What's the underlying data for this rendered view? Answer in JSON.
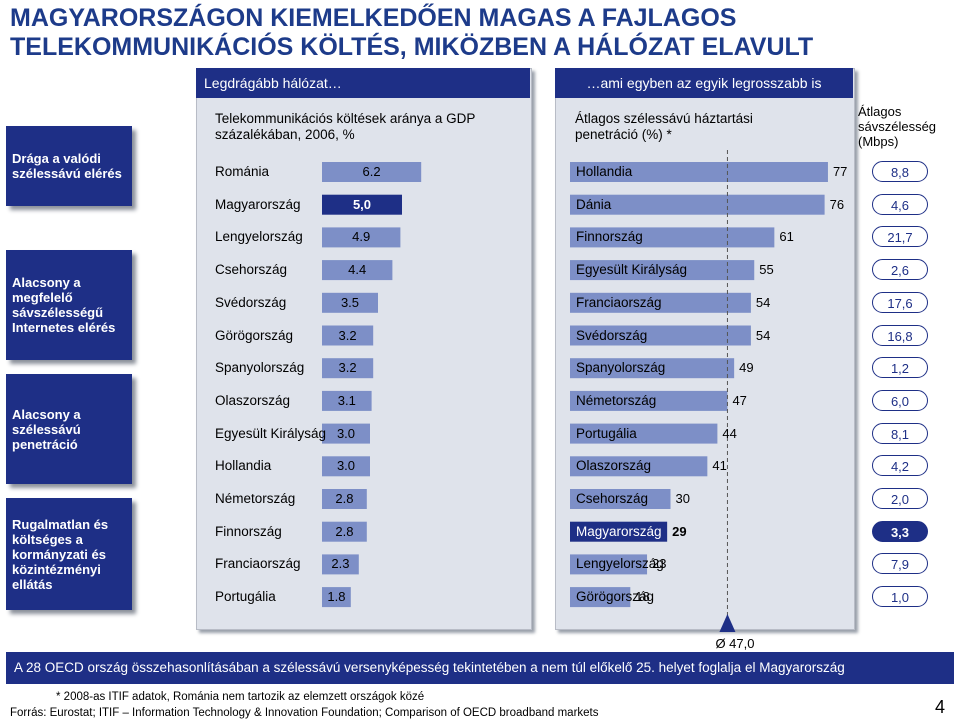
{
  "title_line1": "MAGYARORSZÁGON KIEMELKEDŐEN MAGAS A FAJLAGOS",
  "title_line2": "TELEKOMMUNIKÁCIÓS KÖLTÉS, MIKÖZBEN A HÁLÓZAT ELAVULT",
  "panel_left_header": "Legdrágább hálózat…",
  "panel_right_header": "…ami egyben az egyik legrosszabb is",
  "left_boxes": [
    "Drága a valódi szélessávú elérés",
    "Alacsony a megfelelő sávszélességű Internetes elérés",
    "Alacsony a szélessávú penetráció",
    "Rugalmatlan és költséges a kormányzati és közintézményi ellátás"
  ],
  "bottom_bar": "A 28 OECD ország összehasonlításában a szélessávú versenyképesség tekintetében a nem túl előkelő 25. helyet foglalja el Magyarország",
  "footnote": "* 2008-as ITIF adatok, Románia nem tartozik az elemzett országok közé",
  "source": "Forrás: Eurostat; ITIF – Information Technology & Innovation Foundation; Comparison of OECD broadband markets",
  "page_number": "4",
  "colors": {
    "navy": "#1e2f86",
    "bar": "#7d8fc7",
    "panel": "#dfe3eb",
    "marker": "#1e2f86"
  },
  "chart_data": [
    {
      "type": "bar",
      "title": "Telekommunikációs költések aránya a GDP százalékában, 2006, %",
      "categories": [
        "Románia",
        "Magyarország",
        "Lengyelország",
        "Csehország",
        "Svédország",
        "Görögország",
        "Spanyolország",
        "Olaszország",
        "Egyesült Királyság",
        "Hollandia",
        "Németország",
        "Finnország",
        "Franciaország",
        "Portugália"
      ],
      "values": [
        6.2,
        5.0,
        4.9,
        4.4,
        3.5,
        3.2,
        3.2,
        3.1,
        3.0,
        3.0,
        2.8,
        2.8,
        2.3,
        1.8
      ],
      "value_labels": [
        "6.2",
        "5,0",
        "4.9",
        "4.4",
        "3.5",
        "3.2",
        "3.2",
        "3.1",
        "3.0",
        "3.0",
        "2.8",
        "2.8",
        "2.3",
        "1.8"
      ],
      "highlight": "Magyarország"
    },
    {
      "type": "bar",
      "title": "Átlagos szélessávú háztartási penetráció (%) *",
      "categories": [
        "Hollandia",
        "Dánia",
        "Finnország",
        "Egyesült Királyság",
        "Franciaország",
        "Svédország",
        "Spanyolország",
        "Németország",
        "Portugália",
        "Olaszország",
        "Csehország",
        "Magyarország",
        "Lengyelország",
        "Görögország"
      ],
      "values": [
        77,
        76,
        61,
        55,
        54,
        54,
        49,
        47,
        44,
        41,
        30,
        29,
        23,
        18
      ],
      "value_labels": [
        "77",
        "76",
        "61",
        "55",
        "54",
        "54",
        "49",
        "47",
        "44",
        "41",
        "30",
        "29",
        "23",
        "18"
      ],
      "highlight": "Magyarország",
      "average_label": "Ø 47,0",
      "average_value": 47.0
    },
    {
      "type": "table",
      "title": "Átlagos sávszélesség (Mbps)",
      "values": [
        "8,8",
        "4,6",
        "21,7",
        "2,6",
        "17,6",
        "16,8",
        "1,2",
        "6,0",
        "8,1",
        "4,2",
        "2,0",
        "3,3",
        "7,9",
        "1,0"
      ],
      "highlight_index": 11
    }
  ]
}
